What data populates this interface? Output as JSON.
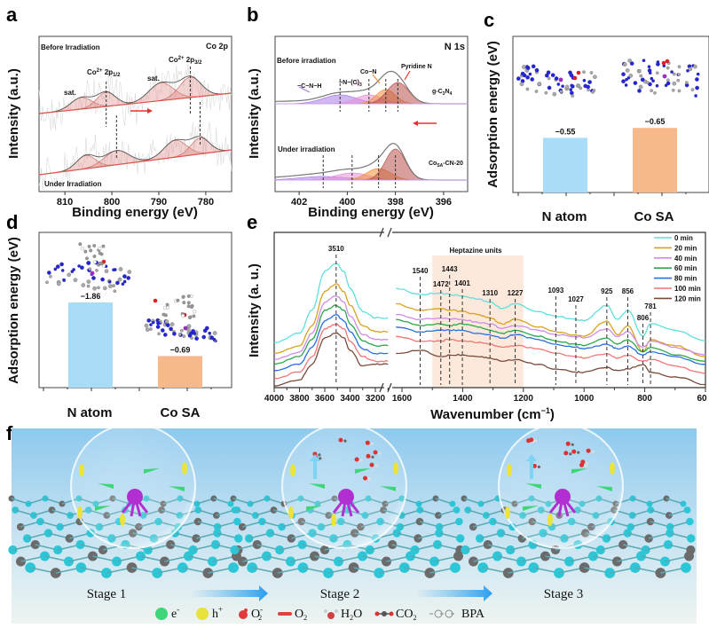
{
  "chart_data": [
    {
      "panel": "a",
      "type": "line",
      "title": "Co 2p",
      "xlabel": "Binding energy (eV)",
      "ylabel": "Intensity (a.u.)",
      "xlim": [
        815.5,
        774.5
      ],
      "xticks": [
        "810",
        "800",
        "790",
        "780"
      ],
      "series": [
        {
          "name": "Before Irradiation",
          "peaks_eV": [
            806.5,
            801.2,
            789.5,
            783.3
          ],
          "peak_labels": [
            "sat.",
            "Co2+ 2p1/2",
            "sat.",
            "Co2+ 2p3/2"
          ],
          "marked_eV": [
            801.2,
            783.3
          ]
        },
        {
          "name": "Under Irradiation",
          "peaks_eV": [
            805.5,
            799.0,
            786.5,
            781.2
          ],
          "marked_eV": [
            799.0,
            781.2
          ]
        }
      ],
      "labels": {
        "sat": "sat.",
        "p12": {
          "main": "Co",
          "sup": "2+",
          "mid": " 2p",
          "sub": "1/2"
        },
        "p32": {
          "main": "Co",
          "sup": "2+",
          "mid": " 2p",
          "sub": "3/2"
        }
      },
      "colors": {
        "component": "#c8605a",
        "envelope": "#666666",
        "raw": "#cccccc",
        "arrow": "#e83030"
      }
    },
    {
      "panel": "b",
      "type": "line",
      "title": "N 1s",
      "xlabel": "Binding energy (eV)",
      "ylabel": "Intensity (a.u.)",
      "xlim": [
        403,
        395
      ],
      "xticks": [
        "402",
        "400",
        "398",
        "396"
      ],
      "components": [
        "−C−N−H",
        "−N−(C)",
        "Co−N",
        "Pyridine N"
      ],
      "components_sub": "3",
      "series": [
        {
          "name": "Before irradiation",
          "sample": "g-C3N4",
          "sample_parts": {
            "a": "g-C",
            "b": "3",
            "c": "N",
            "d": "4"
          },
          "peaks_eV": [
            400.3,
            399.1,
            398.4,
            397.9
          ]
        },
        {
          "name": "Under irradiation",
          "sample": "CoSA-CN-20",
          "sample_parts": {
            "a": "Co",
            "b": "SA",
            "c": "-CN-20"
          },
          "peaks_eV": [
            401.0,
            399.8,
            398.7,
            398.0
          ]
        }
      ],
      "colors": [
        "#a97be8",
        "#e68fd6",
        "#f0913a",
        "#b8504a"
      ]
    },
    {
      "panel": "c",
      "type": "bar",
      "ylabel": "Adsorption energy (eV)",
      "categories": [
        "N atom",
        "Co SA"
      ],
      "values": [
        -0.55,
        -0.65
      ],
      "value_labels": [
        "−0.55",
        "−0.65"
      ],
      "colors": [
        "#a9dcf7",
        "#f8b98a"
      ]
    },
    {
      "panel": "d",
      "type": "bar",
      "ylabel": "Adsorption energy (eV)",
      "categories": [
        "N atom",
        "Co SA"
      ],
      "values": [
        -1.86,
        -0.69
      ],
      "value_labels": [
        "−1.86",
        "−0.69"
      ],
      "colors": [
        "#a9dcf7",
        "#f8b98a"
      ]
    },
    {
      "panel": "e",
      "type": "line",
      "xlabel": "Wavenumber (cm",
      "xlabel_sup": "−1",
      "xlabel_end": ")",
      "ylabel": "Intensity (a. u.)",
      "xticks_left": [
        "4000",
        "3800",
        "3600",
        "3400",
        "3200"
      ],
      "xticks_right": [
        "1600",
        "1400",
        "1200",
        "1000",
        "800",
        "60"
      ],
      "x_break": [
        3100,
        1620
      ],
      "shaded_region": {
        "label": "Heptazine units",
        "from": 1500,
        "to": 1200,
        "color": "#fbe3d2"
      },
      "peak_marks": [
        "3510",
        "1540",
        "1472",
        "1443",
        "1401",
        "1310",
        "1227",
        "1093",
        "1027",
        "925",
        "856",
        "806",
        "781"
      ],
      "legend_position": "top-right",
      "x": [
        4000,
        3800,
        3700,
        3600,
        3510,
        3450,
        3400,
        3300,
        3200,
        3100,
        1620,
        1540,
        1472,
        1443,
        1401,
        1350,
        1310,
        1270,
        1227,
        1150,
        1093,
        1027,
        1000,
        925,
        890,
        856,
        806,
        781,
        700,
        600
      ],
      "series": [
        {
          "name": "0 min",
          "color": "#5fe0dc",
          "values": [
            29,
            35,
            50,
            75,
            80,
            75,
            64,
            49,
            45,
            45,
            64,
            60,
            61,
            60,
            59,
            57,
            55,
            51,
            54,
            49,
            46,
            44,
            43,
            53,
            44,
            50,
            33,
            41,
            37,
            30
          ]
        },
        {
          "name": "20 min",
          "color": "#d8a31c",
          "values": [
            22,
            27,
            40,
            62,
            67,
            62,
            53,
            40,
            36,
            36,
            54,
            50,
            51,
            50,
            49,
            47,
            45,
            41,
            44,
            39,
            36,
            34,
            33,
            43,
            34,
            40,
            23,
            31,
            27,
            20
          ]
        },
        {
          "name": "40 min",
          "color": "#d08ce8",
          "values": [
            18,
            23,
            35,
            55,
            59,
            55,
            46,
            34,
            31,
            31,
            47,
            44,
            45,
            44,
            44,
            42,
            41,
            38,
            40,
            37,
            34,
            33,
            32,
            38,
            33,
            36,
            26,
            30,
            26,
            21
          ]
        },
        {
          "name": "60 min",
          "color": "#2aa84a",
          "values": [
            15,
            20,
            31,
            50,
            53,
            50,
            41,
            30,
            27,
            27,
            44,
            40,
            41,
            40,
            41,
            39,
            37,
            35,
            37,
            33,
            30,
            28,
            27,
            32,
            28,
            31,
            23,
            26,
            21,
            17
          ]
        },
        {
          "name": "80 min",
          "color": "#2a6fe0",
          "values": [
            11,
            15,
            26,
            43,
            47,
            43,
            36,
            25,
            22,
            22,
            39,
            36,
            37,
            37,
            37,
            35,
            34,
            32,
            34,
            31,
            28,
            26,
            25,
            28,
            25,
            27,
            21,
            23,
            20,
            15
          ]
        },
        {
          "name": "100 min",
          "color": "#f27474",
          "values": [
            6,
            10,
            20,
            38,
            41,
            38,
            30,
            20,
            17,
            17,
            33,
            30,
            30,
            31,
            30,
            29,
            28,
            26,
            27,
            25,
            22,
            20,
            19,
            22,
            19,
            21,
            17,
            18,
            14,
            9
          ]
        },
        {
          "name": "120 min",
          "color": "#7a4a3a",
          "values": [
            1,
            5,
            15,
            32,
            35,
            32,
            24,
            14,
            15,
            15,
            22,
            24,
            20,
            21,
            21,
            20,
            19,
            17,
            18,
            15,
            12,
            10,
            10,
            13,
            11,
            12,
            15,
            10,
            7,
            2
          ]
        }
      ]
    }
  ],
  "panel_letters": {
    "a": "a",
    "b": "b",
    "c": "c",
    "d": "d",
    "e": "e",
    "f": "f"
  },
  "schematic": {
    "stages": [
      "Stage 1",
      "Stage 2",
      "Stage 3"
    ],
    "legend": [
      {
        "icon": "electron-icon",
        "label": "e",
        "sup": "-",
        "color": "#3fd67a"
      },
      {
        "icon": "hole-icon",
        "label": "h",
        "sup": "+",
        "color": "#e8e23a"
      },
      {
        "icon": "superoxide-icon",
        "label": "O",
        "sup": "-",
        "sub": "2",
        "color": "#e23a3a"
      },
      {
        "icon": "oxygen-icon",
        "label": "O",
        "sub": "2",
        "color": "#e04040"
      },
      {
        "icon": "water-icon",
        "label": "H",
        "sub": "2",
        "label_end": "O",
        "color": "#d04040"
      },
      {
        "icon": "co2-icon",
        "label": "CO",
        "sub": "2",
        "color": "#555555"
      },
      {
        "icon": "bpa-icon",
        "label": "BPA",
        "color": "#777777"
      }
    ],
    "colors": {
      "sky_top": "#8ec9ee",
      "sky_bottom": "#eef4f1",
      "nitrogen": "#2cc6d6",
      "carbon": "#6b6b6b",
      "cobalt": "#b12fd0"
    }
  }
}
